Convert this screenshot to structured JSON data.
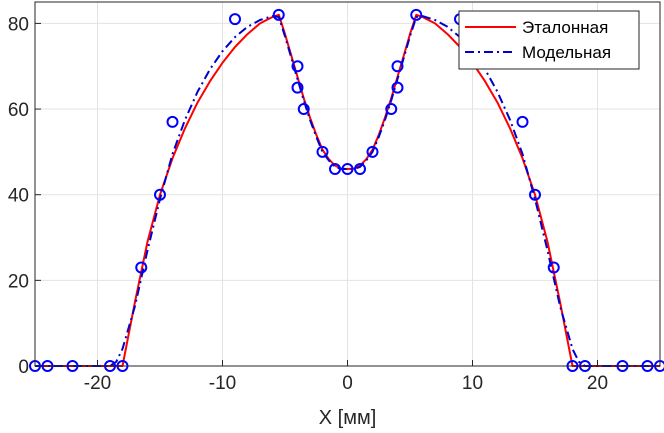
{
  "chart_data": {
    "type": "line",
    "xlabel": "X [мм]",
    "ylabel": "",
    "xlim": [
      -25,
      25
    ],
    "ylim": [
      0,
      85
    ],
    "grid": true,
    "legend_position": "top-right",
    "x_ticks": [
      -20,
      -10,
      0,
      10,
      20
    ],
    "y_ticks": [
      0,
      20,
      40,
      60,
      80
    ],
    "series": [
      {
        "name": "Эталонная",
        "style": "solid",
        "color": "#ff0000",
        "x": [
          -25,
          -18,
          -17,
          -16,
          -15,
          -14,
          -13,
          -12,
          -11,
          -10,
          -9,
          -8,
          -7,
          -6,
          -5.5,
          -5,
          -4.5,
          -4,
          -3.5,
          -3,
          -2.5,
          -2,
          -1.5,
          -1,
          -0.5,
          0,
          0.5,
          1,
          1.5,
          2,
          2.5,
          3,
          3.5,
          4,
          4.5,
          5,
          5.5,
          6,
          7,
          8,
          9,
          10,
          11,
          12,
          13,
          14,
          15,
          16,
          17,
          18,
          25
        ],
        "y": [
          0,
          0,
          15,
          29,
          40,
          48.5,
          55.5,
          61.5,
          66.5,
          70.8,
          74.5,
          77.5,
          80,
          81.5,
          82,
          77.5,
          72.5,
          67.5,
          62.5,
          58,
          54,
          50.5,
          48.3,
          46.8,
          46.1,
          46,
          46.1,
          46.8,
          48.3,
          50.5,
          54,
          58,
          62.5,
          67.5,
          72.5,
          77.5,
          82,
          81.5,
          80,
          77.5,
          74.5,
          70.8,
          66.5,
          61.5,
          55.5,
          48.5,
          40,
          29,
          15,
          0,
          0
        ]
      },
      {
        "name": "Модельная",
        "style": "dashdot",
        "color": "#0000cc",
        "x": [
          -25,
          -19,
          -18.5,
          -18,
          -17,
          -16,
          -15,
          -14,
          -13,
          -12,
          -11,
          -10,
          -9,
          -8,
          -7,
          -6,
          -5.5,
          -5,
          -4.5,
          -4,
          -3.5,
          -3,
          -2.5,
          -2,
          -1.5,
          -1,
          -0.5,
          0,
          0.5,
          1,
          1.5,
          2,
          2.5,
          3,
          3.5,
          4,
          4.5,
          5,
          5.5,
          6,
          7,
          8,
          9,
          10,
          11,
          12,
          13,
          14,
          15,
          16,
          17,
          18,
          18.5,
          19,
          25
        ],
        "y": [
          0,
          0,
          1,
          4,
          14,
          27,
          39,
          49.5,
          57.5,
          64,
          69.3,
          73.5,
          76.8,
          79.2,
          80.8,
          81.7,
          81.5,
          77,
          72,
          67,
          62,
          57.5,
          53.5,
          50,
          48,
          46.5,
          46,
          46,
          46,
          46.5,
          48,
          50,
          53.5,
          57.5,
          62,
          67,
          72,
          77,
          81.5,
          81.7,
          80.8,
          79.2,
          76.8,
          73.5,
          69.3,
          64,
          57.5,
          49.5,
          39,
          27,
          14,
          4,
          1,
          0,
          0
        ]
      },
      {
        "name": "",
        "style": "markers",
        "marker": "circle",
        "color": "#0000ff",
        "x": [
          -25,
          -24,
          -22,
          -19,
          -18,
          -16.5,
          -15,
          -14,
          -9,
          -5.5,
          -4,
          -4,
          -3.5,
          -2,
          -1,
          0,
          1,
          2,
          3.5,
          4,
          4,
          5.5,
          9,
          14,
          15,
          16.5,
          18,
          19,
          22,
          24,
          25
        ],
        "y": [
          0,
          0,
          0,
          0,
          0,
          23,
          40,
          57,
          81,
          82,
          70,
          65,
          60,
          50,
          46,
          46,
          46,
          50,
          60,
          65,
          70,
          82,
          81,
          57,
          40,
          23,
          0,
          0,
          0,
          0,
          0
        ]
      }
    ]
  }
}
